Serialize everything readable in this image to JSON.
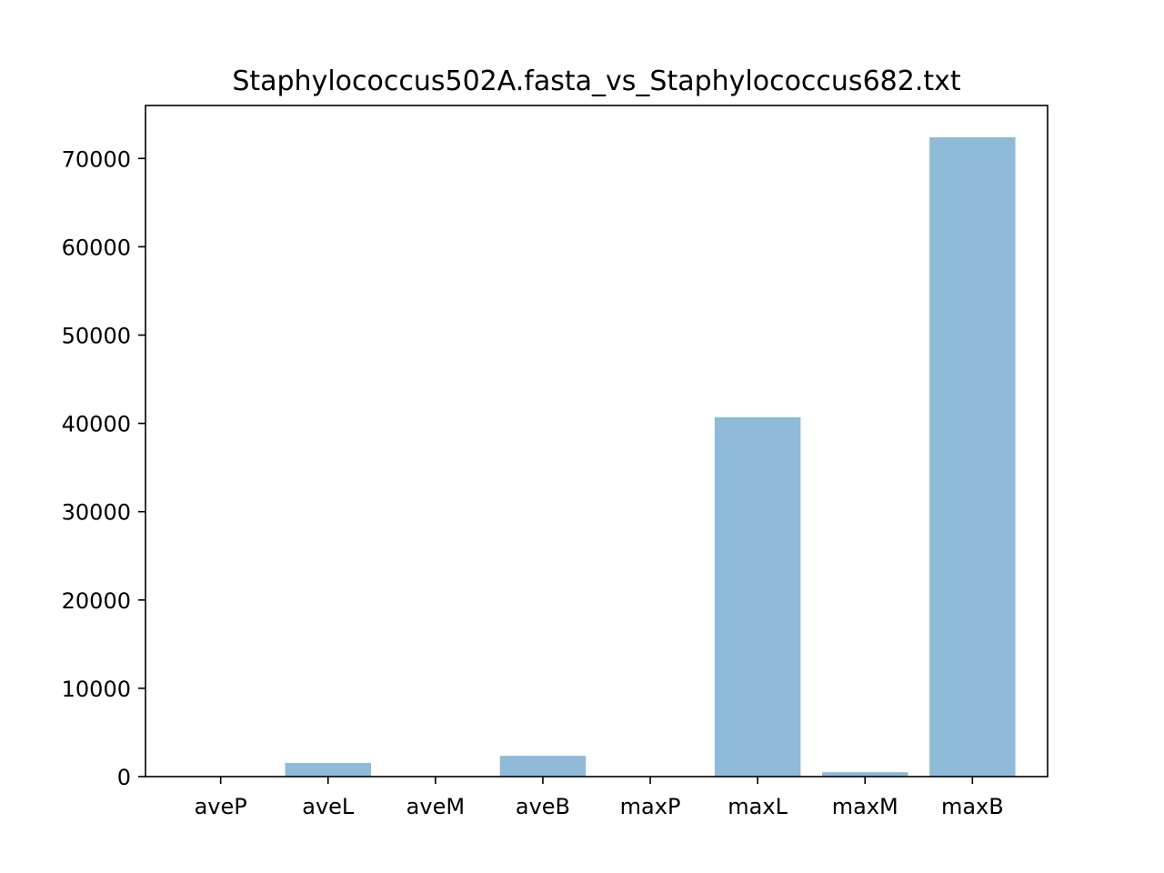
{
  "chart_data": {
    "type": "bar",
    "title": "Staphylococcus502A.fasta_vs_Staphylococcus682.txt",
    "xlabel": "",
    "ylabel": "",
    "categories": [
      "aveP",
      "aveL",
      "aveM",
      "aveB",
      "maxP",
      "maxL",
      "maxM",
      "maxB"
    ],
    "values": [
      5,
      1550,
      10,
      2350,
      5,
      40700,
      500,
      72400
    ],
    "ylim": [
      0,
      76000
    ],
    "yticks": [
      0,
      10000,
      20000,
      30000,
      40000,
      50000,
      60000,
      70000
    ],
    "ytick_labels": [
      "0",
      "10000",
      "20000",
      "30000",
      "40000",
      "50000",
      "60000",
      "70000"
    ],
    "bar_color": "#8fbad8",
    "grid": false,
    "legend": "none"
  }
}
